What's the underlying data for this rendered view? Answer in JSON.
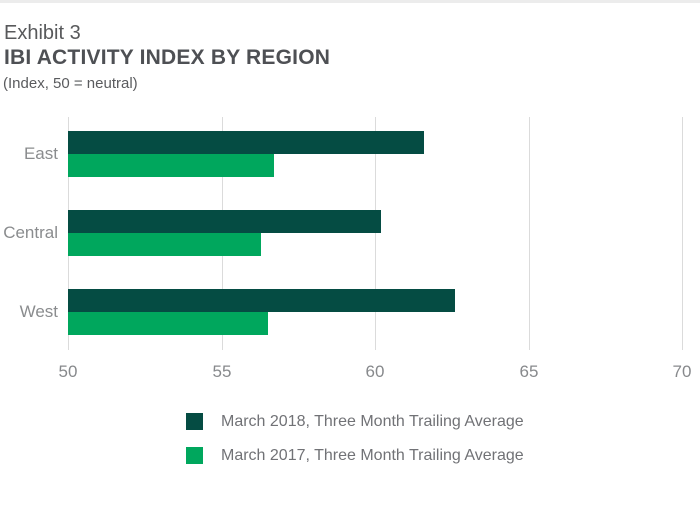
{
  "header": {
    "exhibit": "Exhibit 3",
    "title": "IBI ACTIVITY INDEX BY REGION",
    "subtitle": "(Index, 50 = neutral)"
  },
  "colors": {
    "series_march_2018": "#054c43",
    "series_march_2017": "#00a75d",
    "gridline": "#dbdbdb",
    "axis_text": "#87898c",
    "category_text": "#8a8c8e",
    "title_text": "#4e5054",
    "subtitle_text": "#5a5b5e",
    "legend_text": "#717276",
    "top_border": "#ececec",
    "background": "#ffffff"
  },
  "chart_data": {
    "type": "bar",
    "orientation": "horizontal",
    "title": "IBI ACTIVITY INDEX BY REGION",
    "subtitle": "(Index, 50 = neutral)",
    "categories": [
      "East",
      "Central",
      "West"
    ],
    "series": [
      {
        "name": "March 2018, Three Month Trailing Average",
        "color": "#054c43",
        "values": [
          61.6,
          60.2,
          62.6
        ]
      },
      {
        "name": "March 2017, Three Month Trailing Average",
        "color": "#00a75d",
        "values": [
          56.7,
          56.3,
          56.5
        ]
      }
    ],
    "xlim": [
      50,
      70
    ],
    "xticks": [
      50,
      55,
      60,
      65,
      70
    ],
    "grid": "vertical-only",
    "legend_position": "bottom"
  }
}
